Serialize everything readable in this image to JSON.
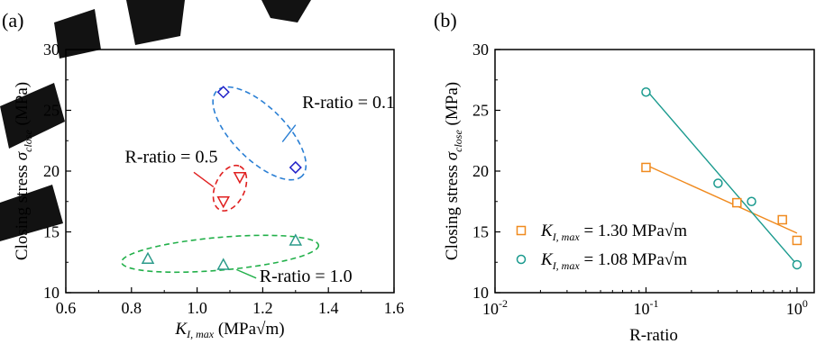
{
  "chart_data": [
    {
      "panel_label": "(a)",
      "type": "scatter",
      "x_label": {
        "main": "K",
        "sub": "I, max",
        "unit": " (MPa√m)"
      },
      "y_label": {
        "pre": "Closing stress ",
        "sym": "σ",
        "sub": "close",
        "unit": " (MPa)"
      },
      "xlim": [
        0.6,
        1.6
      ],
      "ylim": [
        10,
        30
      ],
      "x_ticks": [
        0.6,
        0.8,
        1.0,
        1.2,
        1.4,
        1.6
      ],
      "x_tick_labels": [
        "0.6",
        "0.8",
        "1.0",
        "1.2",
        "1.4",
        "1.6"
      ],
      "y_ticks": [
        10,
        15,
        20,
        25,
        30
      ],
      "y_tick_labels": [
        "10",
        "15",
        "20",
        "25",
        "30"
      ],
      "grid": false,
      "series": [
        {
          "marker": "diamond",
          "color": "#2020c8",
          "x": [
            1.08,
            1.3
          ],
          "y": [
            26.5,
            20.3
          ]
        },
        {
          "marker": "triangle-down",
          "color": "#e02020",
          "x": [
            1.08,
            1.13
          ],
          "y": [
            17.5,
            19.5
          ]
        },
        {
          "marker": "triangle-up",
          "color": "#2a9a8a",
          "x": [
            0.85,
            1.08,
            1.3
          ],
          "y": [
            12.8,
            12.3,
            14.3
          ]
        }
      ],
      "groups": [
        {
          "label": "R-ratio = 0.1",
          "color": "#2a7fd4",
          "center": [
            1.19,
            23.1
          ],
          "axis_a_end": [
            1.32,
            19.6
          ],
          "axis_b_half": 0.08
        },
        {
          "label": "R-ratio = 0.5",
          "color": "#e02020",
          "center": [
            1.1,
            18.6
          ],
          "axis_a_end": [
            1.13,
            20.4
          ],
          "axis_b_half": 0.045
        },
        {
          "label": "R-ratio = 1.0",
          "color": "#22b04a",
          "center": [
            1.07,
            13.2
          ],
          "axis_a_end": [
            1.37,
            13.9
          ],
          "axis_b_half": 1.35
        }
      ],
      "annotations": [
        {
          "text": "R-ratio = 0.1",
          "x": 1.32,
          "y": 25.2,
          "leader_from": [
            1.3,
            23.8
          ],
          "leader_to": [
            1.26,
            22.4
          ],
          "color": "#2a7fd4"
        },
        {
          "text": "R-ratio = 0.5",
          "x": 0.78,
          "y": 20.7,
          "leader_from": [
            0.99,
            19.9
          ],
          "leader_to": [
            1.05,
            18.7
          ],
          "color": "#e02020"
        },
        {
          "text": "R-ratio = 1.0",
          "x": 1.19,
          "y": 10.9,
          "leader_from": [
            1.18,
            11.2
          ],
          "leader_to": [
            1.12,
            11.9
          ],
          "color": "#22b04a"
        }
      ]
    },
    {
      "panel_label": "(b)",
      "type": "scatter",
      "x_label": "R-ratio",
      "y_label": {
        "pre": "Closing stress ",
        "sym": "σ",
        "sub": "close",
        "unit": " (MPa)"
      },
      "x_scale": "log",
      "xlim": [
        0.01,
        1.3
      ],
      "ylim": [
        10,
        30
      ],
      "x_ticks": [
        0.01,
        0.1,
        1
      ],
      "x_tick_labels": [
        {
          "base": "10",
          "exp": "-2"
        },
        {
          "base": "10",
          "exp": "-1"
        },
        {
          "base": "10",
          "exp": "0"
        }
      ],
      "y_ticks": [
        10,
        15,
        20,
        25,
        30
      ],
      "y_tick_labels": [
        "10",
        "15",
        "20",
        "25",
        "30"
      ],
      "grid": false,
      "legend_position": "bottom-left",
      "series": [
        {
          "name": {
            "main": "K",
            "sub": "I, max",
            "rest": " = 1.30 MPa√m"
          },
          "marker": "square",
          "color": "#f08a1e",
          "x": [
            0.1,
            0.4,
            0.8,
            1.0
          ],
          "y": [
            20.3,
            17.4,
            16.0,
            14.3
          ],
          "fit": {
            "x": [
              0.1,
              1.0
            ],
            "y": [
              20.5,
              14.9
            ]
          }
        },
        {
          "name": {
            "main": "K",
            "sub": "I, max",
            "rest": " = 1.08 MPa√m"
          },
          "marker": "circle",
          "color": "#1a9a8e",
          "x": [
            0.1,
            0.3,
            0.5,
            1.0
          ],
          "y": [
            26.5,
            19.0,
            17.5,
            12.3
          ],
          "fit": {
            "x": [
              0.1,
              1.0
            ],
            "y": [
              26.7,
              12.3
            ]
          }
        }
      ]
    }
  ]
}
